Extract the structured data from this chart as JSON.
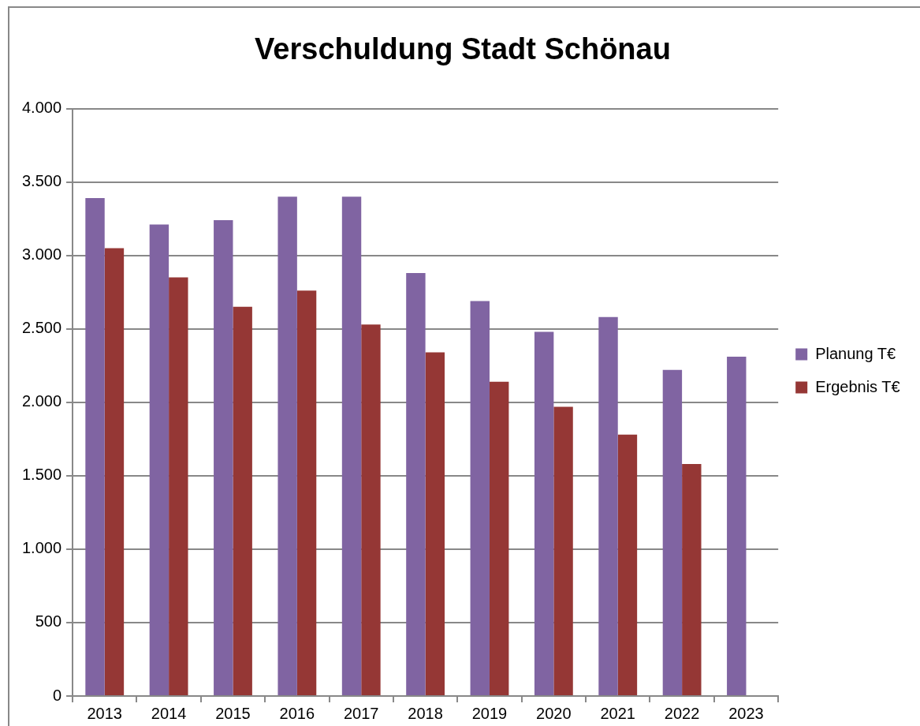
{
  "chart_data": {
    "type": "bar",
    "title": "Verschuldung Stadt Schönau",
    "categories": [
      "2013",
      "2014",
      "2015",
      "2016",
      "2017",
      "2018",
      "2019",
      "2020",
      "2021",
      "2022",
      "2023"
    ],
    "series": [
      {
        "name": "Planung T€",
        "color": "#8064a2",
        "values": [
          3390,
          3210,
          3240,
          3400,
          3400,
          2880,
          2690,
          2480,
          2580,
          2220,
          2310
        ]
      },
      {
        "name": "Ergebnis T€",
        "color": "#953735",
        "values": [
          3050,
          2850,
          2650,
          2760,
          2530,
          2340,
          2140,
          1970,
          1780,
          1580,
          null
        ]
      }
    ],
    "ylim": [
      0,
      4000
    ],
    "yticks": [
      {
        "value": 0,
        "label": "0"
      },
      {
        "value": 500,
        "label": "500"
      },
      {
        "value": 1000,
        "label": "1.000"
      },
      {
        "value": 1500,
        "label": "1.500"
      },
      {
        "value": 2000,
        "label": "2.000"
      },
      {
        "value": 2500,
        "label": "2.500"
      },
      {
        "value": 3000,
        "label": "3.000"
      },
      {
        "value": 3500,
        "label": "3.500"
      },
      {
        "value": 4000,
        "label": "4.000"
      }
    ],
    "grid": "y",
    "legend": "right"
  }
}
